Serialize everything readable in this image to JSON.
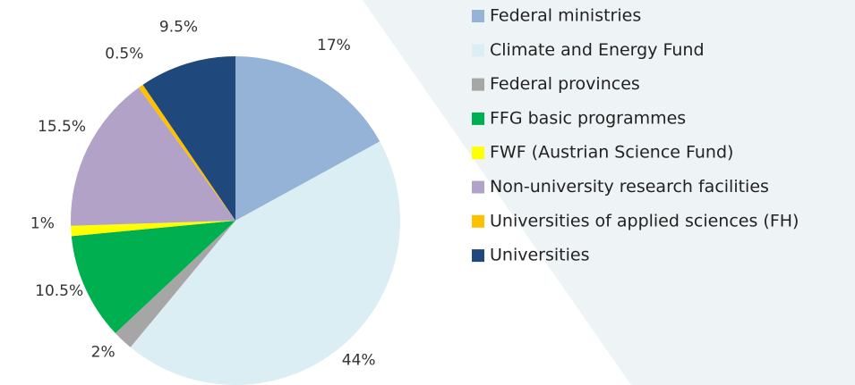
{
  "chart_data": {
    "type": "pie",
    "categories": [
      "Federal ministries",
      "Climate and Energy Fund",
      "Federal provinces",
      "FFG basic programmes",
      "FWF (Austrian Science Fund)",
      "Non-university research facilities",
      "Universities of applied sciences (FH)",
      "Universities"
    ],
    "values": [
      17,
      44,
      2,
      10.5,
      1,
      15.5,
      0.5,
      9.5
    ],
    "value_labels": [
      "17%",
      "44%",
      "2%",
      "10.5%",
      "1%",
      "15.5%",
      "0.5%",
      "9.5%"
    ],
    "colors": [
      "#95b3d7",
      "#dbeef4",
      "#a6a6a6",
      "#00b050",
      "#ffff00",
      "#b3a2c7",
      "#ffc000",
      "#1f497d"
    ]
  }
}
